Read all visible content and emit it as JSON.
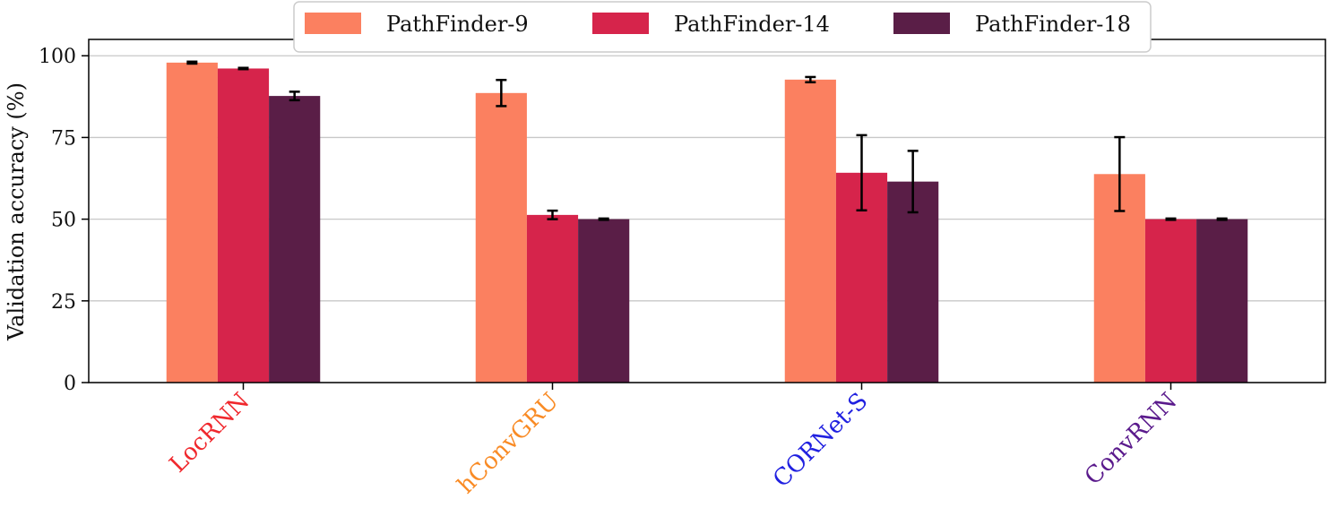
{
  "chart_data": {
    "type": "bar",
    "title": "",
    "xlabel": "",
    "ylabel": "Validation accuracy (%)",
    "ylim": [
      0,
      105
    ],
    "yticks": [
      0,
      25,
      50,
      75,
      100
    ],
    "grid": "horizontal",
    "legend_position": "top-center",
    "categories": [
      "LocRNN",
      "hConvGRU",
      "CORNet-S",
      "ConvRNN"
    ],
    "category_colors": [
      "#f0282d",
      "#f98b25",
      "#2020e0",
      "#5a1a8c"
    ],
    "series": [
      {
        "name": "PathFinder-9",
        "color": "#fb8060",
        "values": [
          97.9,
          88.6,
          92.7,
          63.8
        ],
        "errors": [
          0.3,
          4.0,
          0.8,
          11.3
        ]
      },
      {
        "name": "PathFinder-14",
        "color": "#d6244b",
        "values": [
          96.1,
          51.3,
          64.2,
          50.0
        ],
        "errors": [
          0.2,
          1.3,
          11.5,
          0.2
        ]
      },
      {
        "name": "PathFinder-18",
        "color": "#5a1e47",
        "values": [
          87.7,
          50.0,
          61.5,
          50.0
        ],
        "errors": [
          1.3,
          0.2,
          9.4,
          0.2
        ]
      }
    ]
  }
}
